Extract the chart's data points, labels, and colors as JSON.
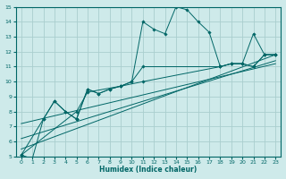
{
  "xlabel": "Humidex (Indice chaleur)",
  "xlim": [
    -0.5,
    23.5
  ],
  "ylim": [
    5,
    15
  ],
  "xticks": [
    0,
    1,
    2,
    3,
    4,
    5,
    6,
    7,
    8,
    9,
    10,
    11,
    12,
    13,
    14,
    15,
    16,
    17,
    18,
    19,
    20,
    21,
    22,
    23
  ],
  "yticks": [
    5,
    6,
    7,
    8,
    9,
    10,
    11,
    12,
    13,
    14,
    15
  ],
  "background_color": "#ceeaea",
  "grid_color": "#aacece",
  "line_color": "#006666",
  "lines": [
    {
      "x": [
        0,
        1,
        2,
        3,
        4,
        5,
        5,
        6,
        7,
        8,
        9,
        10,
        11,
        12,
        13,
        14,
        15,
        16,
        17,
        18,
        19,
        20,
        21,
        22,
        23
      ],
      "y": [
        5.1,
        4.85,
        7.5,
        8.7,
        8.0,
        7.5,
        7.5,
        9.5,
        9.2,
        9.5,
        9.7,
        10.0,
        14.0,
        13.5,
        13.2,
        15.0,
        14.8,
        14.0,
        13.3,
        11.0,
        11.2,
        11.2,
        13.2,
        11.8,
        11.8
      ],
      "marker": true
    },
    {
      "x": [
        0,
        2,
        3,
        4,
        5,
        6,
        7,
        8,
        9,
        10,
        11,
        18,
        19,
        20,
        21,
        22,
        23
      ],
      "y": [
        5.1,
        7.5,
        8.7,
        8.0,
        7.5,
        9.5,
        9.2,
        9.5,
        9.7,
        10.0,
        11.0,
        11.0,
        11.2,
        11.2,
        11.0,
        11.8,
        11.8
      ],
      "marker": true
    },
    {
      "x": [
        0,
        5,
        6,
        9,
        11,
        18,
        19,
        20,
        21,
        22,
        23
      ],
      "y": [
        5.1,
        8.0,
        9.3,
        9.7,
        10.0,
        11.0,
        11.2,
        11.2,
        11.0,
        11.8,
        11.8
      ],
      "marker": true
    },
    {
      "x": [
        0,
        23
      ],
      "y": [
        5.5,
        11.8
      ],
      "marker": false
    },
    {
      "x": [
        0,
        23
      ],
      "y": [
        6.2,
        11.4
      ],
      "marker": false
    },
    {
      "x": [
        0,
        23
      ],
      "y": [
        7.2,
        11.2
      ],
      "marker": false
    }
  ]
}
